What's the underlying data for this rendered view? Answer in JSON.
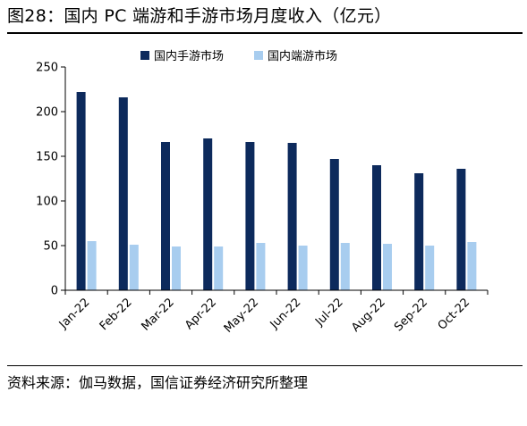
{
  "header": {
    "title": "图28：国内 PC 端游和手游市场月度收入（亿元）"
  },
  "footer": {
    "source": "资料来源：伽马数据，国信证券经济研究所整理"
  },
  "chart_data": {
    "type": "bar",
    "title": "",
    "xlabel": "",
    "ylabel": "",
    "categories": [
      "Jan-22",
      "Feb-22",
      "Mar-22",
      "Apr-22",
      "May-22",
      "Jun-22",
      "Jul-22",
      "Aug-22",
      "Sep-22",
      "Oct-22"
    ],
    "series": [
      {
        "name": "国内手游市场",
        "color": "#0d2a5c",
        "values": [
          222,
          216,
          166,
          170,
          166,
          165,
          147,
          140,
          131,
          136
        ]
      },
      {
        "name": "国内端游市场",
        "color": "#a8cdef",
        "values": [
          55,
          51,
          49,
          49,
          53,
          50,
          53,
          52,
          50,
          54
        ]
      }
    ],
    "ylim": [
      0,
      250
    ],
    "yticks": [
      0,
      50,
      100,
      150,
      200,
      250
    ],
    "grid": false,
    "legend_position": "top-center"
  }
}
